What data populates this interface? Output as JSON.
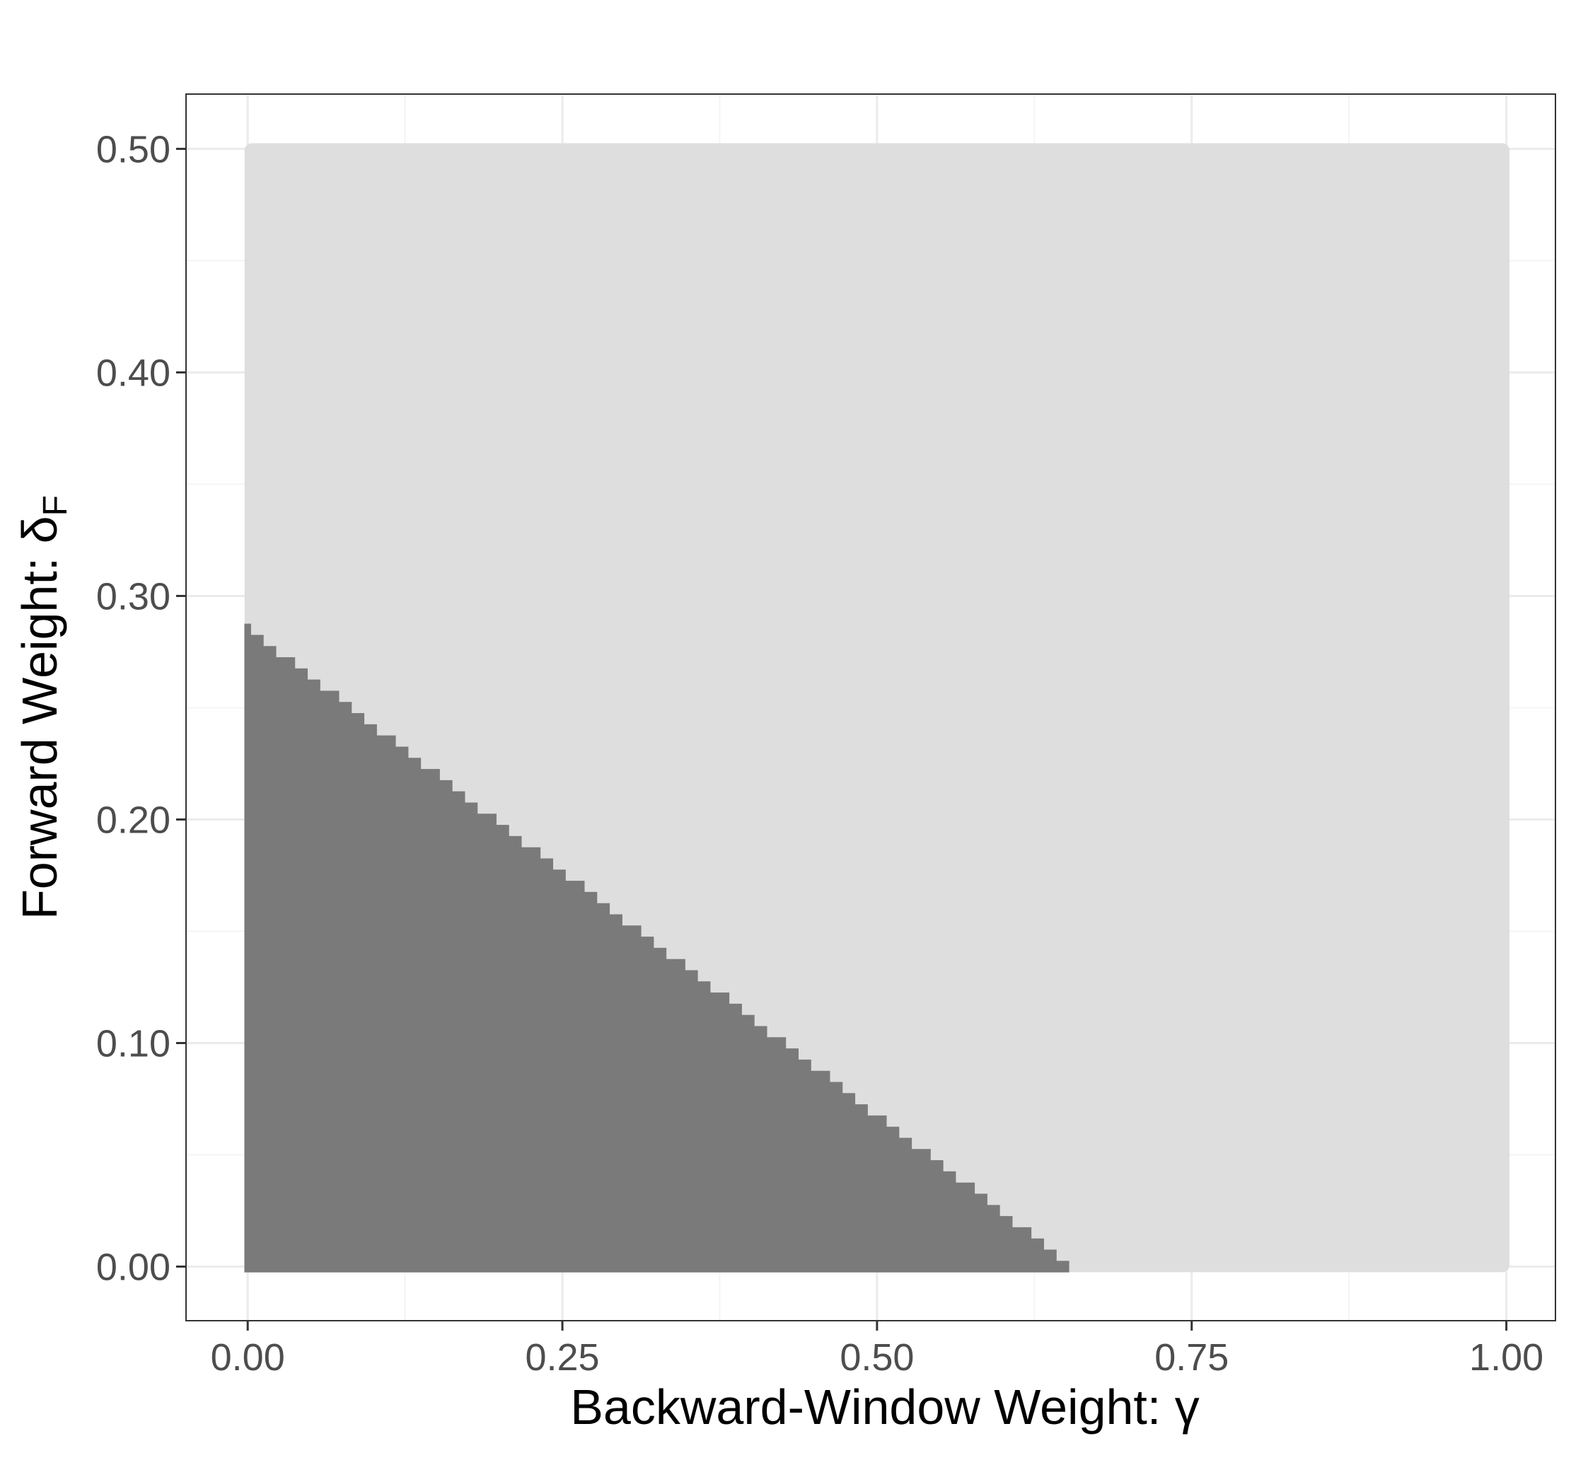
{
  "chart_data": {
    "type": "heatmap",
    "title": "",
    "xlabel": "Backward-Window Weight: γ",
    "ylabel_main": "Forward Weight: δ",
    "ylabel_subscript": "F",
    "x_ticks": [
      {
        "value": 0.0,
        "label": "0.00"
      },
      {
        "value": 0.25,
        "label": "0.25"
      },
      {
        "value": 0.5,
        "label": "0.50"
      },
      {
        "value": 0.75,
        "label": "0.75"
      },
      {
        "value": 1.0,
        "label": "1.00"
      }
    ],
    "y_ticks": [
      {
        "value": 0.0,
        "label": "0.00"
      },
      {
        "value": 0.1,
        "label": "0.10"
      },
      {
        "value": 0.2,
        "label": "0.20"
      },
      {
        "value": 0.3,
        "label": "0.30"
      },
      {
        "value": 0.4,
        "label": "0.40"
      },
      {
        "value": 0.5,
        "label": "0.50"
      }
    ],
    "xlim": [
      -0.049,
      1.039
    ],
    "ylim": [
      -0.0242,
      0.5245
    ],
    "grid": true,
    "legend": "none",
    "regions": [
      {
        "description": "full grid",
        "color": "#dedede",
        "x_range": [
          0.0,
          1.0
        ],
        "y_range": [
          0.0,
          0.5
        ]
      },
      {
        "description": "lower-left triangle",
        "color": "#7a7a7a",
        "boundary_points": [
          [
            0.0,
            0.0
          ],
          [
            0.0,
            0.283
          ],
          [
            0.65,
            0.0
          ]
        ]
      }
    ],
    "cell_step": 0.005,
    "colors": {
      "panel_border": "#333333",
      "grid_major": "#ebebeb",
      "grid_minor": "#f4f4f4",
      "tick_mark": "#333333"
    }
  }
}
